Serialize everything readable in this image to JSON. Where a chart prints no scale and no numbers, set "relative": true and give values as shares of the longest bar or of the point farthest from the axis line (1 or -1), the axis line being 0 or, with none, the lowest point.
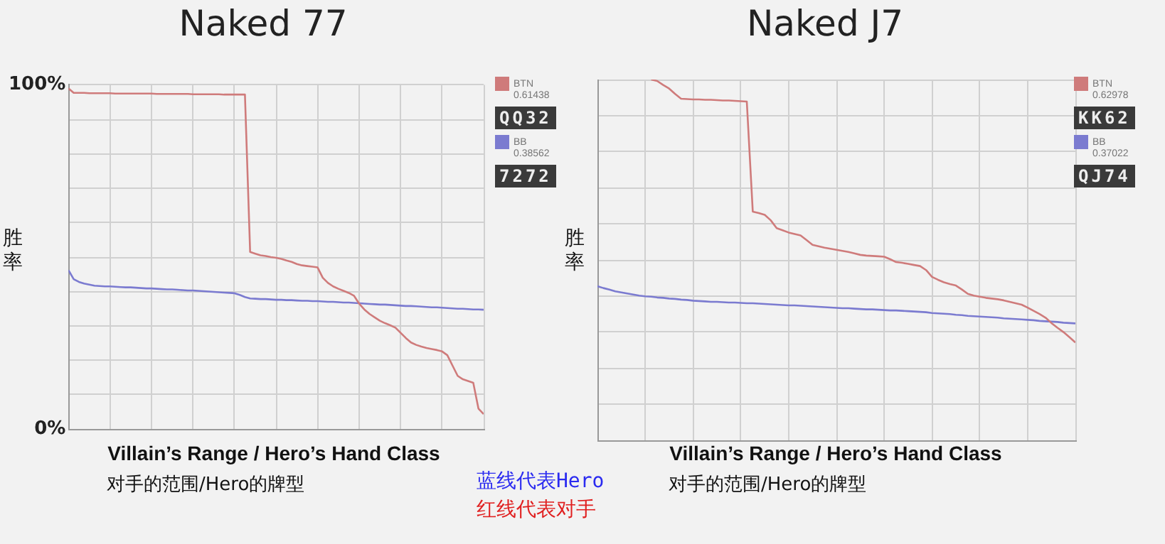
{
  "chart_data": [
    {
      "type": "line",
      "title": "Naked 77",
      "xlabel": "Villain’s Range / Hero’s Hand Class",
      "ylabel": "胜率",
      "categories": [
        null,
        null,
        null,
        null,
        null,
        null,
        null,
        null,
        null,
        null,
        null,
        null,
        null,
        null,
        null,
        null,
        null,
        null,
        null,
        null,
        null,
        null,
        null,
        null,
        null,
        null,
        null,
        null,
        null,
        null,
        null,
        null,
        null,
        null,
        null,
        null,
        null,
        null,
        null,
        null,
        null,
        null,
        null,
        null,
        null,
        null,
        null,
        null,
        null,
        null,
        null,
        null,
        null,
        null,
        null,
        null,
        null,
        null,
        null,
        null,
        null,
        null,
        null,
        null,
        null,
        null,
        null,
        null,
        null,
        null,
        null,
        null,
        null,
        null,
        null,
        null,
        null,
        null,
        null,
        null,
        null
      ],
      "series": [
        {
          "name": "BTN",
          "color": "#cf7b7b",
          "values": [
            99,
            97.7,
            97.7,
            97.7,
            97.6,
            97.6,
            97.6,
            97.6,
            97.6,
            97.5,
            97.5,
            97.5,
            97.5,
            97.5,
            97.5,
            97.5,
            97.5,
            97.4,
            97.4,
            97.4,
            97.4,
            97.4,
            97.4,
            97.4,
            97.3,
            97.3,
            97.3,
            97.3,
            97.3,
            97.3,
            97.2,
            97.2,
            97.2,
            97.2,
            97.2,
            51.5,
            51,
            50.5,
            50.3,
            50,
            49.8,
            49.5,
            49,
            48.6,
            48,
            47.6,
            47.4,
            47.2,
            47,
            44,
            42.5,
            41.5,
            40.8,
            40.2,
            39.6,
            38.8,
            36.5,
            34.8,
            33.5,
            32.5,
            31.5,
            30.8,
            30.2,
            29.5,
            28,
            26.5,
            25.2,
            24.5,
            24,
            23.6,
            23.3,
            23,
            22.6,
            21.5,
            18.5,
            15.5,
            14.5,
            14,
            13.5,
            6,
            4.4
          ]
        },
        {
          "name": "BB",
          "color": "#7b7bd0",
          "values": [
            46.2,
            43.6,
            42.8,
            42.3,
            42.0,
            41.7,
            41.6,
            41.5,
            41.5,
            41.4,
            41.3,
            41.2,
            41.2,
            41.1,
            41.0,
            40.9,
            40.9,
            40.8,
            40.7,
            40.6,
            40.6,
            40.5,
            40.4,
            40.3,
            40.3,
            40.2,
            40.1,
            40.0,
            39.9,
            39.8,
            39.7,
            39.6,
            39.5,
            39,
            38.4,
            38.0,
            37.9,
            37.8,
            37.8,
            37.7,
            37.6,
            37.6,
            37.5,
            37.5,
            37.4,
            37.3,
            37.3,
            37.2,
            37.2,
            37.1,
            37.0,
            37.0,
            36.9,
            36.8,
            36.8,
            36.7,
            36.6,
            36.5,
            36.4,
            36.3,
            36.2,
            36.2,
            36.1,
            36.0,
            35.9,
            35.8,
            35.8,
            35.7,
            35.6,
            35.5,
            35.4,
            35.4,
            35.3,
            35.2,
            35.1,
            35.0,
            35.0,
            34.9,
            34.8,
            34.8,
            34.7
          ]
        }
      ],
      "ylim": [
        0,
        100
      ],
      "yticks": [
        {
          "value": 0,
          "label": "0%"
        },
        {
          "value": 10,
          "label": null
        },
        {
          "value": 20,
          "label": null
        },
        {
          "value": 30,
          "label": null
        },
        {
          "value": 40,
          "label": null
        },
        {
          "value": 50,
          "label": null
        },
        {
          "value": 60,
          "label": null
        },
        {
          "value": 70,
          "label": null
        },
        {
          "value": 80,
          "label": null
        },
        {
          "value": 90,
          "label": null
        },
        {
          "value": 100,
          "label": "100%"
        }
      ],
      "grid": true,
      "legend": "top right",
      "tick_labels": "y",
      "annotations": [
        "0.61438",
        "QQ32",
        "0.38562",
        "7272",
        "对手的范围/Hero的牌型",
        "蓝线代表Hero",
        "红线代表对手"
      ]
    },
    {
      "type": "line",
      "title": "Naked J7",
      "xlabel": "Villain’s Range / Hero’s Hand Class",
      "ylabel": "胜率",
      "categories": [
        null,
        null,
        null,
        null,
        null,
        null,
        null,
        null,
        null,
        null,
        null,
        null,
        null,
        null,
        null,
        null,
        null,
        null,
        null,
        null,
        null,
        null,
        null,
        null,
        null,
        null,
        null,
        null,
        null,
        null,
        null,
        null,
        null,
        null,
        null,
        null,
        null,
        null,
        null,
        null,
        null,
        null,
        null,
        null,
        null,
        null,
        null,
        null,
        null,
        null,
        null,
        null,
        null,
        null,
        null,
        null,
        null,
        null,
        null,
        null,
        null,
        null,
        null,
        null,
        null,
        null,
        null,
        null,
        null,
        null,
        null,
        null,
        null,
        null,
        null,
        null,
        null,
        null,
        null,
        null,
        null
      ],
      "series": [
        {
          "name": "BTN",
          "color": "#cf7b7b",
          "values": [
            null,
            null,
            null,
            null,
            null,
            null,
            null,
            null,
            null,
            1,
            0.996,
            0.985,
            0.975,
            0.96,
            0.947,
            0.946,
            0.945,
            0.945,
            0.944,
            0.944,
            0.943,
            0.942,
            0.942,
            0.941,
            0.94,
            0.939,
            0.634,
            0.63,
            0.625,
            0.61,
            0.588,
            0.582,
            0.576,
            0.572,
            0.568,
            0.555,
            0.542,
            0.538,
            0.534,
            0.531,
            0.528,
            0.525,
            0.522,
            0.518,
            0.514,
            0.512,
            0.511,
            0.51,
            0.509,
            0.502,
            0.494,
            0.492,
            0.489,
            0.486,
            0.483,
            0.472,
            0.453,
            0.445,
            0.438,
            0.433,
            0.429,
            0.418,
            0.406,
            0.401,
            0.398,
            0.395,
            0.393,
            0.391,
            0.388,
            0.384,
            0.38,
            0.376,
            0.368,
            0.359,
            0.35,
            0.34,
            0.325,
            0.312,
            0.3,
            0.286,
            0.271
          ]
        },
        {
          "name": "BB",
          "color": "#7b7bd0",
          "values": [
            0.427,
            0.422,
            0.418,
            0.413,
            0.41,
            0.407,
            0.404,
            0.401,
            0.399,
            0.398,
            0.396,
            0.395,
            0.393,
            0.392,
            0.39,
            0.389,
            0.387,
            0.386,
            0.385,
            0.384,
            0.384,
            0.383,
            0.382,
            0.382,
            0.381,
            0.38,
            0.38,
            0.379,
            0.378,
            0.377,
            0.376,
            0.375,
            0.374,
            0.374,
            0.373,
            0.372,
            0.371,
            0.37,
            0.369,
            0.368,
            0.367,
            0.366,
            0.366,
            0.365,
            0.364,
            0.363,
            0.363,
            0.362,
            0.361,
            0.36,
            0.36,
            0.359,
            0.358,
            0.357,
            0.356,
            0.355,
            0.353,
            0.352,
            0.351,
            0.35,
            0.348,
            0.347,
            0.345,
            0.344,
            0.343,
            0.342,
            0.341,
            0.34,
            0.338,
            0.337,
            0.336,
            0.335,
            0.334,
            0.333,
            0.331,
            0.33,
            0.329,
            0.328,
            0.326,
            0.325,
            0.324
          ]
        }
      ],
      "relative": true,
      "grid": true,
      "legend": "top right",
      "tick_labels": false,
      "annotations": [
        "0.62978",
        "KK62",
        "0.37022",
        "QJ74",
        "对手的范围/Hero的牌型"
      ]
    }
  ]
}
